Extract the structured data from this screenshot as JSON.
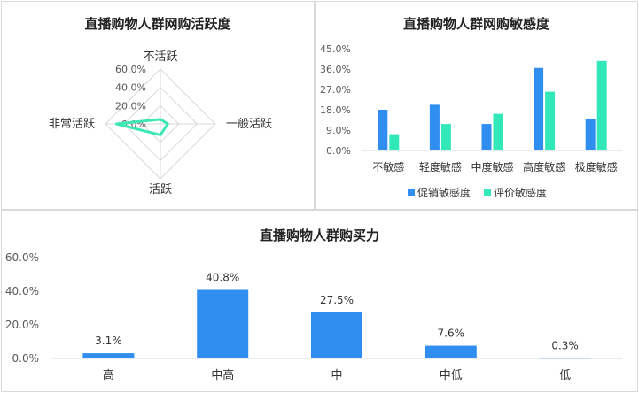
{
  "chart_data": [
    {
      "type": "radar",
      "title": "直播购物人群网购活跃度",
      "axes": [
        "不活跃",
        "一般活跃",
        "活跃",
        "非常活跃"
      ],
      "tick_labels": [
        "0.0%",
        "20.0%",
        "40.0%",
        "60.0%"
      ],
      "rlim": [
        0,
        60
      ],
      "values": [
        5,
        8,
        12,
        48
      ],
      "color": "#3de8b4"
    },
    {
      "type": "bar",
      "title": "直播购物人群网购敏感度",
      "categories": [
        "不敏感",
        "轻度敏感",
        "中度敏感",
        "高度敏感",
        "极度敏感"
      ],
      "series": [
        {
          "name": "促销敏感度",
          "values": [
            18.0,
            20.2,
            11.7,
            36.5,
            14.1
          ],
          "color": "#2f8ef0"
        },
        {
          "name": "评价敏感度",
          "values": [
            7.2,
            11.7,
            16.2,
            26.0,
            39.6
          ],
          "color": "#33e8b8"
        }
      ],
      "ylim": [
        0,
        45
      ],
      "ticks": [
        "0.0%",
        "9.0%",
        "18.0%",
        "27.0%",
        "36.0%",
        "45.0%"
      ],
      "legend": "bottom"
    },
    {
      "type": "bar",
      "title": "直播购物人群购买力",
      "categories": [
        "高",
        "中高",
        "中",
        "中低",
        "低"
      ],
      "values": [
        3.1,
        40.8,
        27.5,
        7.6,
        0.3
      ],
      "labels": [
        "3.1%",
        "40.8%",
        "27.5%",
        "7.6%",
        "0.3%"
      ],
      "ylim": [
        0,
        60
      ],
      "ticks": [
        "0.0%",
        "20.0%",
        "40.0%",
        "60.0%"
      ],
      "color": "#2f8ef0"
    }
  ]
}
